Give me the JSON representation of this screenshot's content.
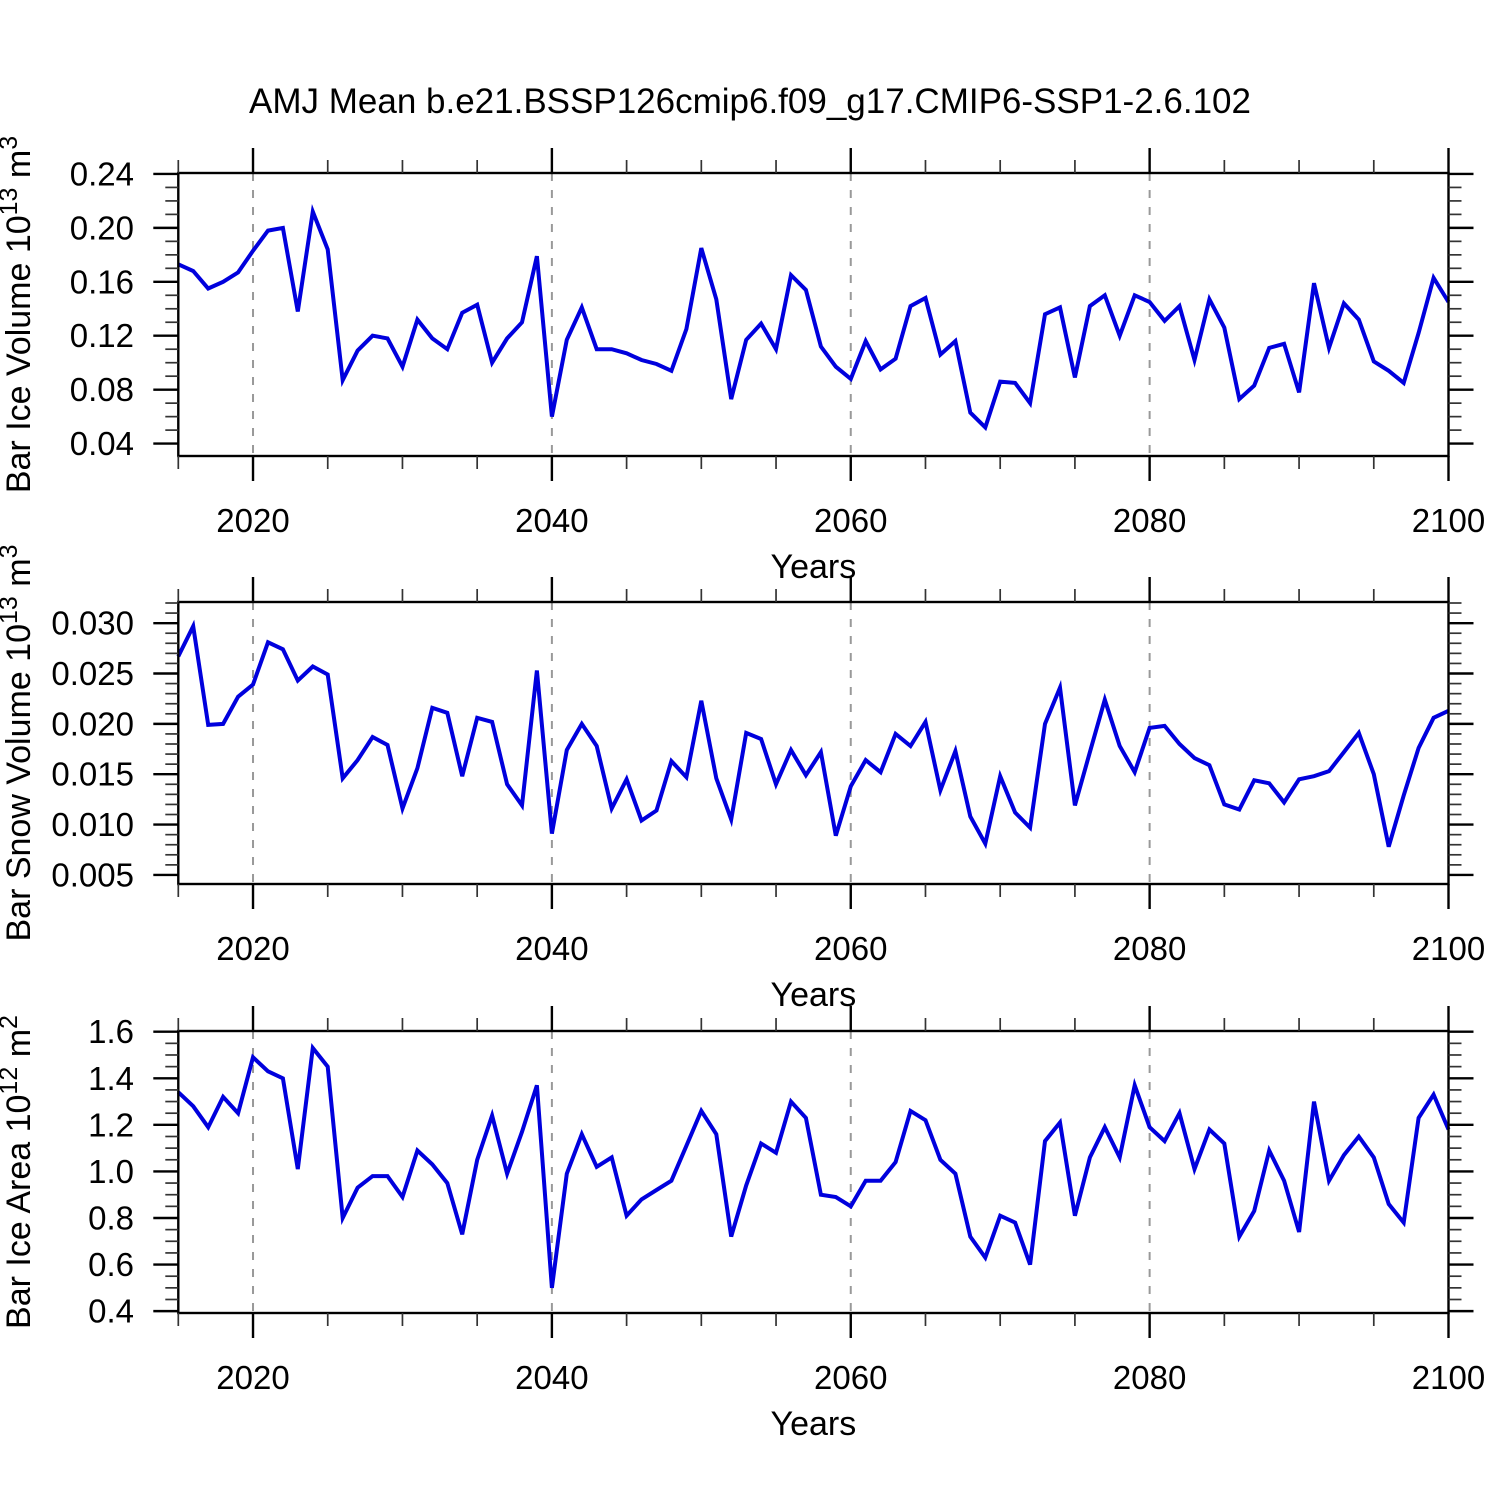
{
  "title": "AMJ Mean b.e21.BSSP126cmip6.f09_g17.CMIP6-SSP1-2.6.102",
  "colors": {
    "line": "#0000dd",
    "grid": "#999999",
    "axis": "#000000",
    "minor_tick": "#333333",
    "text": "#000000",
    "background": "#ffffff"
  },
  "chart_data": {
    "type": "line",
    "suptitle": "AMJ Mean b.e21.BSSP126cmip6.f09_g17.CMIP6-SSP1-2.6.102",
    "x_label": "Years",
    "x_range": [
      2015,
      2100
    ],
    "x_major_ticks": [
      2020,
      2040,
      2060,
      2080,
      2100
    ],
    "x_minor_tick_step": 5,
    "x_gridlines": [
      2020,
      2040,
      2060,
      2080
    ],
    "grid_style": "dashed",
    "legend": "none",
    "x_values": [
      2015,
      2016,
      2017,
      2018,
      2019,
      2020,
      2021,
      2022,
      2023,
      2024,
      2025,
      2026,
      2027,
      2028,
      2029,
      2030,
      2031,
      2032,
      2033,
      2034,
      2035,
      2036,
      2037,
      2038,
      2039,
      2040,
      2041,
      2042,
      2043,
      2044,
      2045,
      2046,
      2047,
      2048,
      2049,
      2050,
      2051,
      2052,
      2053,
      2054,
      2055,
      2056,
      2057,
      2058,
      2059,
      2060,
      2061,
      2062,
      2063,
      2064,
      2065,
      2066,
      2067,
      2068,
      2069,
      2070,
      2071,
      2072,
      2073,
      2074,
      2075,
      2076,
      2077,
      2078,
      2079,
      2080,
      2081,
      2082,
      2083,
      2084,
      2085,
      2086,
      2087,
      2088,
      2089,
      2090,
      2091,
      2092,
      2093,
      2094,
      2095,
      2096,
      2097,
      2098,
      2099,
      2100
    ],
    "subplots": [
      {
        "name": "bar-ice-volume",
        "ylabel_plain": "Bar Ice Volume 10^13 m^3",
        "ylabel_segments": [
          [
            "Bar Ice Volume 10",
            0
          ],
          [
            "13",
            1
          ],
          [
            " m",
            0
          ],
          [
            "3",
            1
          ]
        ],
        "y_major_ticks": [
          0.04,
          0.08,
          0.12,
          0.16,
          0.2,
          0.24
        ],
        "y_tick_labels": [
          "0.04",
          "0.08",
          "0.12",
          "0.16",
          "0.20",
          "0.24"
        ],
        "y_minor_step": 0.01,
        "y_range": [
          0.0308,
          0.2407
        ],
        "values": [
          0.173,
          0.168,
          0.155,
          0.16,
          0.167,
          0.183,
          0.198,
          0.2,
          0.138,
          0.212,
          0.184,
          0.087,
          0.109,
          0.12,
          0.118,
          0.097,
          0.132,
          0.118,
          0.11,
          0.137,
          0.143,
          0.1,
          0.118,
          0.13,
          0.179,
          0.06,
          0.117,
          0.141,
          0.11,
          0.11,
          0.107,
          0.102,
          0.099,
          0.094,
          0.125,
          0.185,
          0.147,
          0.073,
          0.117,
          0.129,
          0.11,
          0.165,
          0.154,
          0.112,
          0.097,
          0.088,
          0.116,
          0.095,
          0.103,
          0.142,
          0.148,
          0.106,
          0.116,
          0.063,
          0.052,
          0.086,
          0.085,
          0.07,
          0.136,
          0.141,
          0.089,
          0.142,
          0.15,
          0.12,
          0.15,
          0.145,
          0.131,
          0.142,
          0.102,
          0.147,
          0.126,
          0.073,
          0.083,
          0.111,
          0.114,
          0.078,
          0.159,
          0.111,
          0.144,
          0.132,
          0.101,
          0.094,
          0.085,
          0.122,
          0.163,
          0.145
        ]
      },
      {
        "name": "bar-snow-volume",
        "ylabel_plain": "Bar Snow Volume 10^13 m^3",
        "ylabel_segments": [
          [
            "Bar Snow Volume 10",
            0
          ],
          [
            "13",
            1
          ],
          [
            " m",
            0
          ],
          [
            "3",
            1
          ]
        ],
        "y_major_ticks": [
          0.005,
          0.01,
          0.015,
          0.02,
          0.025,
          0.03
        ],
        "y_tick_labels": [
          "0.005",
          "0.010",
          "0.015",
          "0.020",
          "0.025",
          "0.030"
        ],
        "y_minor_step": 0.001,
        "y_range": [
          0.0041,
          0.0321
        ],
        "values": [
          0.0267,
          0.0297,
          0.0199,
          0.02,
          0.0227,
          0.0239,
          0.0281,
          0.0274,
          0.0243,
          0.0257,
          0.0249,
          0.0146,
          0.0164,
          0.0187,
          0.0179,
          0.0116,
          0.0156,
          0.0216,
          0.0211,
          0.0148,
          0.0206,
          0.0202,
          0.014,
          0.0119,
          0.0253,
          0.0091,
          0.0174,
          0.02,
          0.0178,
          0.0116,
          0.0145,
          0.0104,
          0.0114,
          0.0163,
          0.0147,
          0.0223,
          0.0146,
          0.0105,
          0.0191,
          0.0185,
          0.014,
          0.0174,
          0.0149,
          0.0172,
          0.0089,
          0.0138,
          0.0164,
          0.0152,
          0.019,
          0.0178,
          0.0202,
          0.0134,
          0.0173,
          0.0108,
          0.0081,
          0.0148,
          0.0112,
          0.0097,
          0.02,
          0.0236,
          0.0119,
          0.0172,
          0.0224,
          0.0178,
          0.0152,
          0.0196,
          0.0198,
          0.018,
          0.0166,
          0.0159,
          0.012,
          0.0115,
          0.0144,
          0.0141,
          0.0122,
          0.0145,
          0.0148,
          0.0153,
          0.0172,
          0.0191,
          0.015,
          0.0078,
          0.0129,
          0.0176,
          0.0206,
          0.0213
        ]
      },
      {
        "name": "bar-ice-area",
        "ylabel_plain": "Bar Ice Area 10^12 m^2",
        "ylabel_segments": [
          [
            "Bar Ice Area 10",
            0
          ],
          [
            "12",
            1
          ],
          [
            " m",
            0
          ],
          [
            "2",
            1
          ]
        ],
        "y_major_ticks": [
          0.4,
          0.6,
          0.8,
          1.0,
          1.2,
          1.4,
          1.6
        ],
        "y_tick_labels": [
          "0.4",
          "0.6",
          "0.8",
          "1.0",
          "1.2",
          "1.4",
          "1.6"
        ],
        "y_minor_step": 0.05,
        "y_range": [
          0.392,
          1.603
        ],
        "values": [
          1.34,
          1.28,
          1.19,
          1.32,
          1.25,
          1.49,
          1.43,
          1.4,
          1.01,
          1.53,
          1.45,
          0.8,
          0.93,
          0.98,
          0.98,
          0.89,
          1.09,
          1.03,
          0.95,
          0.73,
          1.05,
          1.24,
          0.99,
          1.17,
          1.37,
          0.5,
          0.99,
          1.16,
          1.02,
          1.06,
          0.81,
          0.88,
          0.92,
          0.96,
          1.11,
          1.26,
          1.16,
          0.72,
          0.94,
          1.12,
          1.08,
          1.3,
          1.23,
          0.9,
          0.89,
          0.85,
          0.96,
          0.96,
          1.04,
          1.26,
          1.22,
          1.05,
          0.99,
          0.72,
          0.63,
          0.81,
          0.78,
          0.6,
          1.13,
          1.21,
          0.81,
          1.06,
          1.19,
          1.06,
          1.37,
          1.19,
          1.13,
          1.25,
          1.01,
          1.18,
          1.12,
          0.72,
          0.83,
          1.09,
          0.96,
          0.74,
          1.3,
          0.96,
          1.07,
          1.15,
          1.06,
          0.86,
          0.78,
          1.23,
          1.33,
          1.18
        ]
      }
    ]
  }
}
